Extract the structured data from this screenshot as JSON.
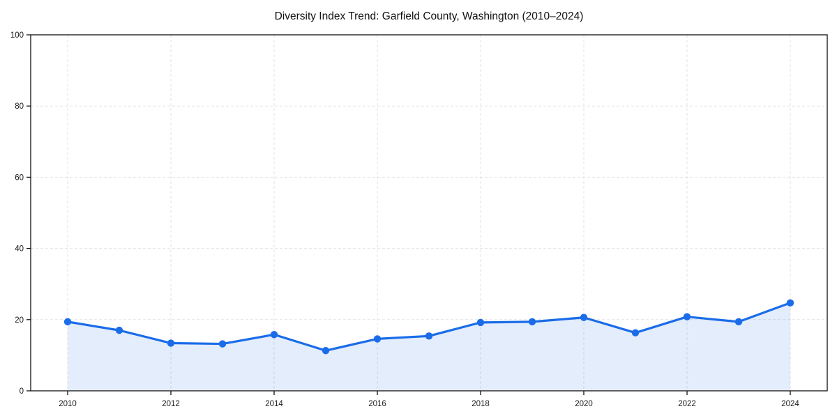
{
  "title": "Diversity Index Trend: Garfield County, Washington (2010–2024)",
  "chart_data": {
    "type": "line",
    "title": "Diversity Index Trend: Garfield County, Washington (2010–2024)",
    "x": [
      2010,
      2011,
      2012,
      2013,
      2014,
      2015,
      2016,
      2017,
      2018,
      2019,
      2020,
      2021,
      2022,
      2023,
      2024
    ],
    "series": [
      {
        "name": "Diversity Index",
        "values": [
          19.4,
          17.0,
          13.4,
          13.2,
          15.8,
          11.3,
          14.6,
          15.4,
          19.2,
          19.4,
          20.6,
          16.3,
          20.8,
          19.4,
          24.7
        ]
      }
    ],
    "xlabel": "",
    "ylabel": "",
    "ylim": [
      0,
      100
    ],
    "yticks": [
      0,
      20,
      40,
      60,
      80,
      100
    ],
    "xticks": [
      2010,
      2012,
      2014,
      2016,
      2018,
      2020,
      2022,
      2024
    ],
    "grid": true,
    "grid_style": "dashed",
    "legend": false,
    "colors": {
      "line": "#1a6ce8",
      "marker": "#1a6ce8",
      "area_fill": "rgba(26, 108, 232, 0.12)",
      "grid": "#e3e3e3",
      "axis": "#111111",
      "tick_label": "#1a1a1a",
      "background": "#ffffff"
    }
  }
}
